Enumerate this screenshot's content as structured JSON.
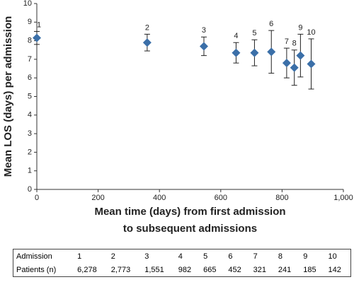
{
  "chart_data": {
    "type": "scatter",
    "x_label": "Mean time (days) from first admission\nto subsequent admissions",
    "y_label": "Mean LOS (days) per admission",
    "x": [
      0,
      360,
      545,
      650,
      710,
      765,
      815,
      840,
      860,
      895
    ],
    "series": [
      {
        "color": "#3b6fa8",
        "values": [
          8.15,
          7.9,
          7.7,
          7.35,
          7.35,
          7.4,
          6.8,
          6.55,
          7.2,
          6.75
        ],
        "errors": [
          0.35,
          0.45,
          0.5,
          0.55,
          0.7,
          1.15,
          0.8,
          0.95,
          1.15,
          1.35
        ],
        "point_labels": [
          "1",
          "2",
          "3",
          "4",
          "5",
          "6",
          "7",
          "8",
          "9",
          "10"
        ]
      }
    ],
    "xlim": [
      0,
      1000
    ],
    "xticks": [
      0,
      200,
      400,
      600,
      800,
      {
        "value": 1000,
        "label": "1,000"
      }
    ],
    "ylim": [
      0,
      10
    ],
    "yticks": [
      0,
      1,
      2,
      3,
      4,
      5,
      6,
      7,
      8,
      9,
      10
    ],
    "grid": false
  },
  "table": {
    "rows": [
      [
        "Admission",
        "1",
        "2",
        "3",
        "4",
        "5",
        "6",
        "7",
        "8",
        "9",
        "10"
      ],
      [
        "Patients (n)",
        "6,278",
        "2,773",
        "1,551",
        "982",
        "665",
        "452",
        "321",
        "241",
        "185",
        "142"
      ]
    ]
  }
}
